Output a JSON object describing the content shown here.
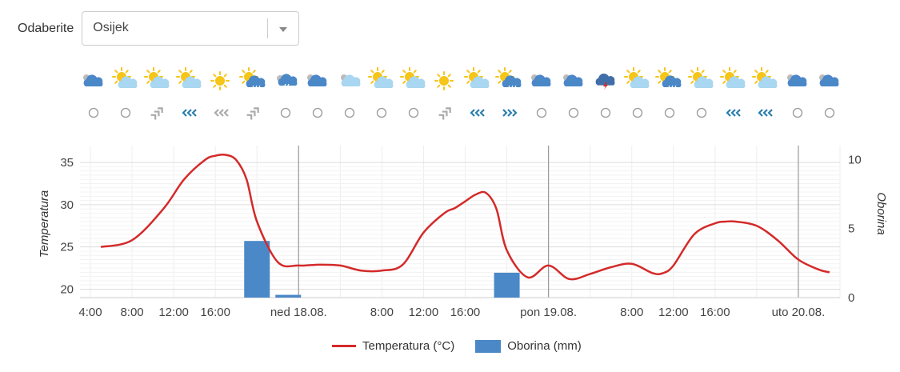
{
  "selector": {
    "label": "Odaberite",
    "value": "Osijek"
  },
  "forecast_icons": [
    "cloudy",
    "partly-sunny",
    "partly-sunny",
    "partly-sunny",
    "sunny",
    "sun-rain",
    "rain-cloud",
    "cloudy",
    "cloud-light",
    "partly-sunny",
    "partly-sunny",
    "sunny",
    "partly-sunny",
    "sun-rain",
    "cloudy",
    "cloudy",
    "thunderstorm",
    "partly-sunny",
    "sun-rain",
    "partly-sunny",
    "partly-sunny",
    "partly-sunny",
    "cloudy",
    "cloudy"
  ],
  "wind_icons": [
    "calm",
    "calm",
    "wind-gray-ne",
    "wind-blue-w",
    "wind-gray-w",
    "wind-gray-ne",
    "calm",
    "calm",
    "calm",
    "calm",
    "calm",
    "wind-gray-ne",
    "wind-blue-w",
    "wind-blue-e",
    "calm",
    "calm",
    "calm",
    "calm",
    "calm",
    "calm",
    "wind-blue-w",
    "wind-blue-w",
    "calm",
    "calm"
  ],
  "colors": {
    "temperature": "#d42a2a",
    "precipitation": "#4a88c7",
    "wind_blue": "#2a7fb0",
    "wind_gray": "#aaaaaa",
    "sun": "#f5c518",
    "cloud_blue": "#4a88c7",
    "cloud_light": "#a9d6f0"
  },
  "chart_data": {
    "type": "line",
    "x_tick_labels": [
      "4:00",
      "8:00",
      "12:00",
      "16:00",
      "ned 18.08.",
      "8:00",
      "12:00",
      "16:00",
      "pon 19.08.",
      "8:00",
      "12:00",
      "16:00",
      "uto 20.08."
    ],
    "x_tick_hours": [
      4,
      8,
      12,
      16,
      24,
      32,
      36,
      40,
      48,
      56,
      60,
      64,
      72
    ],
    "y_left": {
      "label": "Temperatura",
      "ticks": [
        20,
        25,
        30,
        35
      ],
      "range": [
        19,
        37
      ]
    },
    "y_right": {
      "label": "Oborina",
      "ticks": [
        0,
        5,
        10
      ],
      "range": [
        0,
        11
      ]
    },
    "series": [
      {
        "name": "Temperatura (°C)",
        "type": "line",
        "x": [
          5,
          8,
          11,
          13,
          15,
          16,
          17,
          18,
          19,
          20,
          22,
          24,
          26,
          28,
          30,
          32,
          34,
          36,
          38,
          39,
          40,
          41,
          42,
          43,
          44,
          46,
          48,
          50,
          52,
          54,
          56,
          58,
          59,
          60,
          62,
          64,
          65,
          66,
          68,
          70,
          72,
          74,
          75
        ],
        "y": [
          25,
          25.8,
          29.5,
          33,
          35.3,
          35.8,
          35.9,
          35.3,
          33,
          28,
          23.2,
          22.8,
          22.9,
          22.8,
          22.2,
          22.2,
          22.9,
          26.7,
          29,
          29.6,
          30.4,
          31.2,
          31.4,
          29.5,
          24.6,
          21.4,
          22.8,
          21.2,
          21.8,
          22.6,
          23,
          21.9,
          21.9,
          22.8,
          26.5,
          27.8,
          28,
          28,
          27.5,
          25.8,
          23.5,
          22.3,
          22
        ]
      },
      {
        "name": "Oborina (mm)",
        "type": "bar",
        "x": [
          20,
          23,
          44
        ],
        "y": [
          4.1,
          0.2,
          1.8
        ]
      }
    ]
  }
}
